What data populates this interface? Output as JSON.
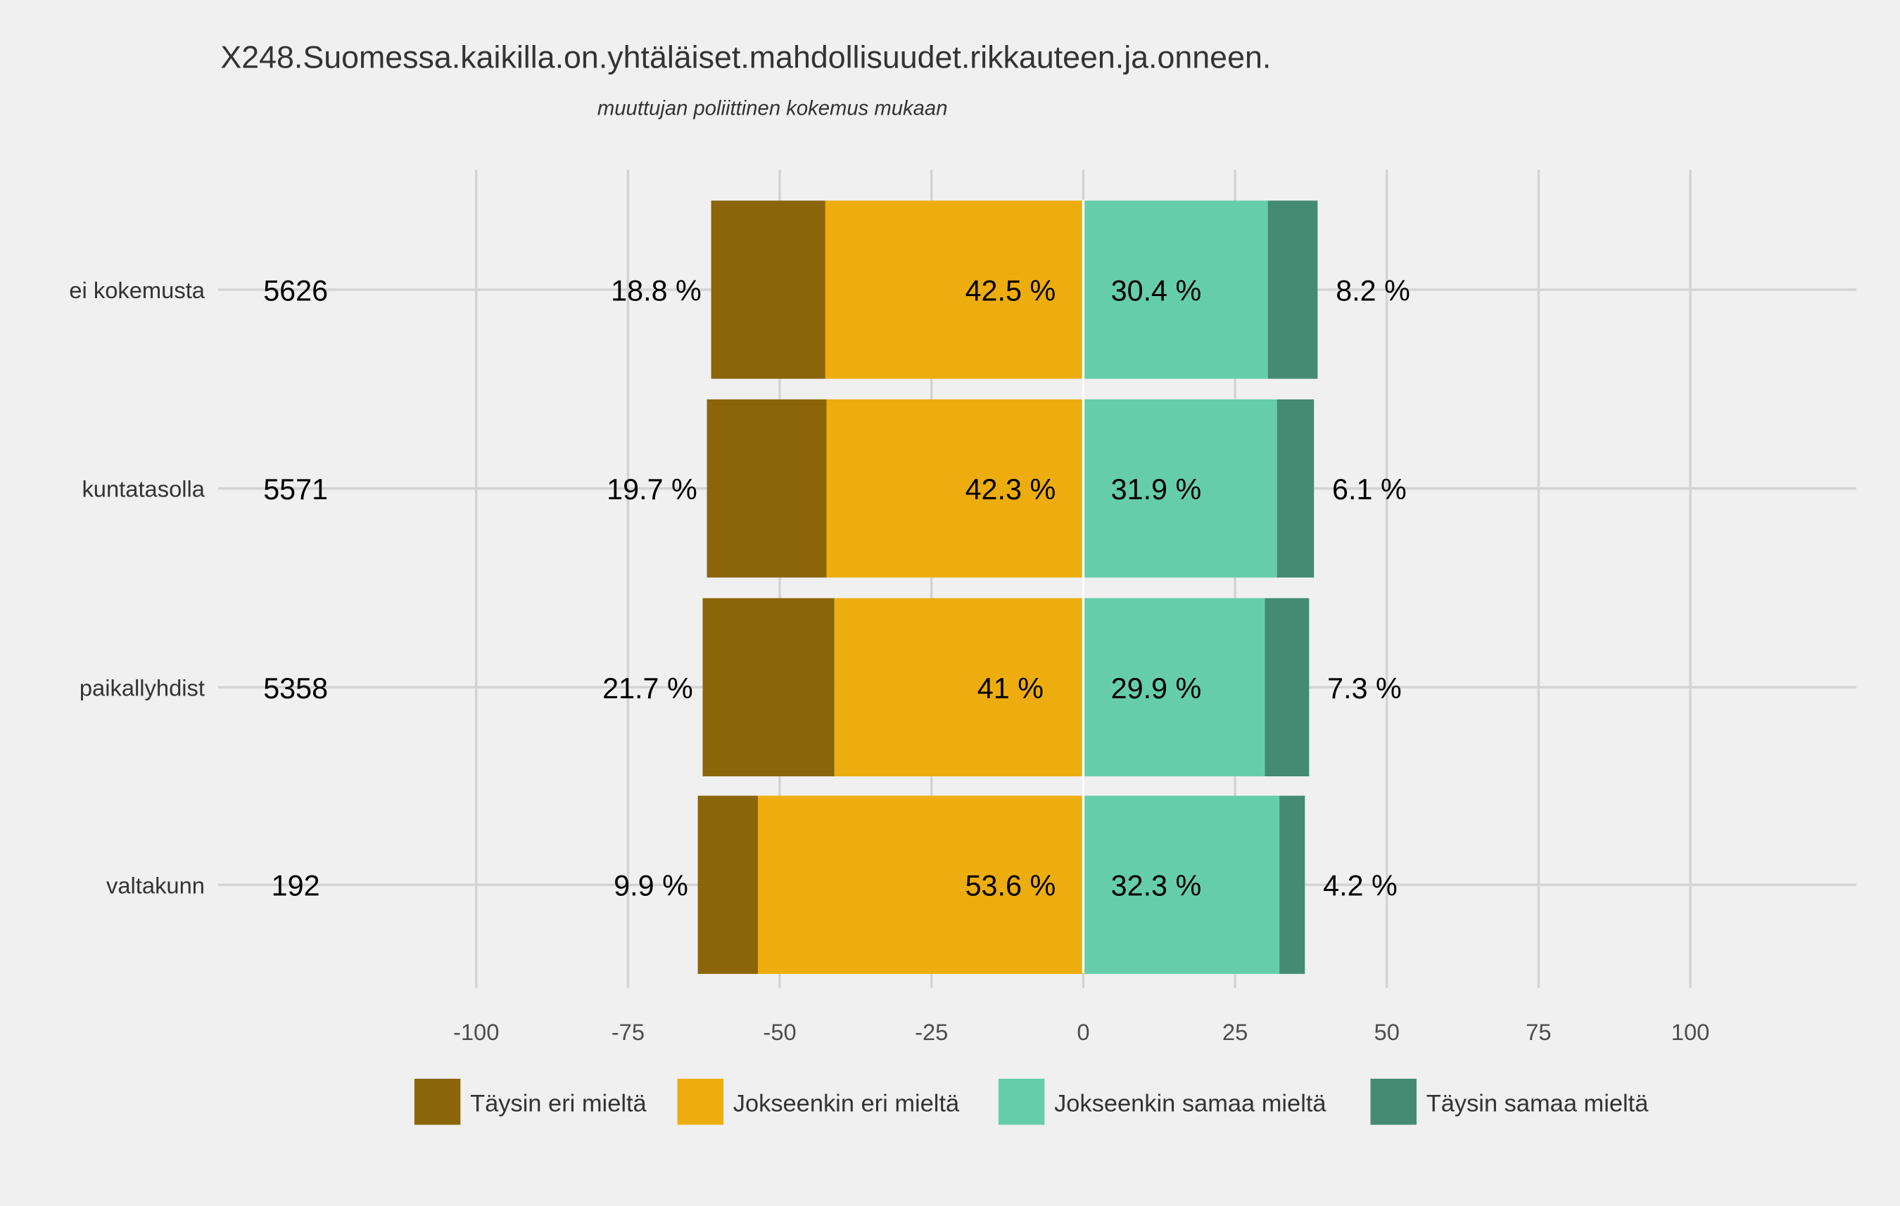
{
  "chart_data": {
    "type": "bar",
    "orientation": "horizontal-diverging-stacked",
    "title": "X248.Suomessa.kaikilla.on.yhtäläiset.mahdollisuudet.rikkauteen.ja.onneen.",
    "subtitle": "muuttujan  poliittinen kokemus  mukaan",
    "xlabel": "",
    "ylabel": "",
    "xlim": [
      -128,
      128
    ],
    "x_ticks": [
      -100,
      -75,
      -50,
      -25,
      0,
      25,
      50,
      75,
      100
    ],
    "x_tick_labels": [
      "-100",
      "-75",
      "-50",
      "-25",
      "0",
      "25",
      "50",
      "75",
      "100"
    ],
    "grid": true,
    "legend_position": "bottom",
    "categories": [
      "ei kokemusta",
      "kuntatasolla",
      "paikallyhdist",
      "valtakunn"
    ],
    "n": [
      "5626",
      "5571",
      "5358",
      "192"
    ],
    "series": [
      {
        "name": "Täysin eri mieltä",
        "side": "negative",
        "color": "#8B6508",
        "values": [
          18.8,
          19.7,
          21.7,
          9.9
        ],
        "labels": [
          "18.8 %",
          "19.7 %",
          "21.7 %",
          "9.9 %"
        ]
      },
      {
        "name": "Jokseenkin eri mieltä",
        "side": "negative",
        "color": "#EDAD0F",
        "values": [
          42.5,
          42.3,
          41,
          53.6
        ],
        "labels": [
          "42.5 %",
          "42.3 %",
          "41 %",
          "53.6 %"
        ]
      },
      {
        "name": "Jokseenkin samaa mieltä",
        "side": "positive",
        "color": "#66CDAA",
        "values": [
          30.4,
          31.9,
          29.9,
          32.3
        ],
        "labels": [
          "30.4 %",
          "31.9 %",
          "29.9 %",
          "32.3 %"
        ]
      },
      {
        "name": "Täysin samaa mieltä",
        "side": "positive",
        "color": "#458B74",
        "values": [
          8.2,
          6.1,
          7.3,
          4.2
        ],
        "labels": [
          "8.2 %",
          "6.1 %",
          "7.3 %",
          "4.2 %"
        ]
      }
    ]
  }
}
